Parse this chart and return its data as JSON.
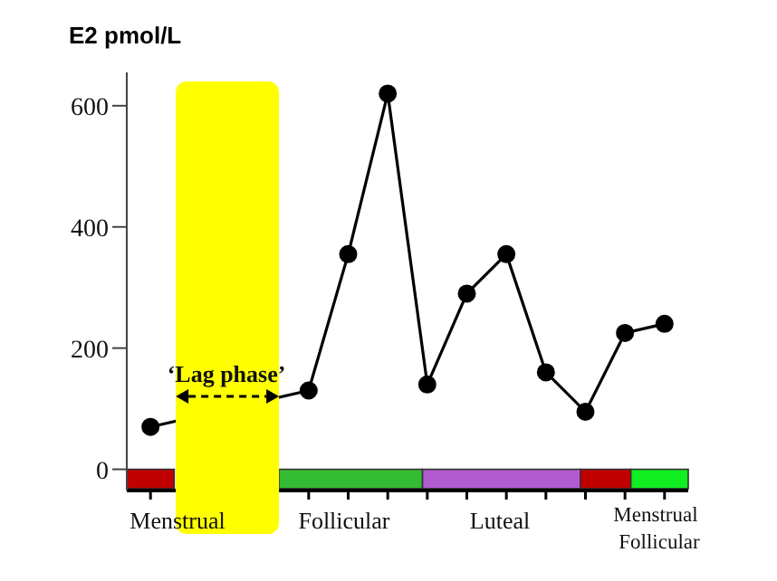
{
  "chart_data": {
    "type": "line",
    "ylabel": "E2 pmol/L",
    "categories": [
      null,
      null,
      null,
      null,
      null,
      null,
      null,
      null,
      null,
      null,
      null,
      null,
      null,
      null
    ],
    "series": [
      {
        "color": "#000000",
        "values": [
          70,
          null,
          null,
          null,
          130,
          355,
          620,
          140,
          290,
          355,
          160,
          95,
          225,
          240
        ]
      }
    ],
    "marker": "circle",
    "ylim": [
      -35,
      655
    ],
    "yticks": [
      0,
      200,
      400,
      600
    ],
    "annotations": [
      "‘Lag phase’",
      "Menstrual",
      "Follicular",
      "Luteal",
      "Menstrual",
      "Follicular"
    ]
  }
}
